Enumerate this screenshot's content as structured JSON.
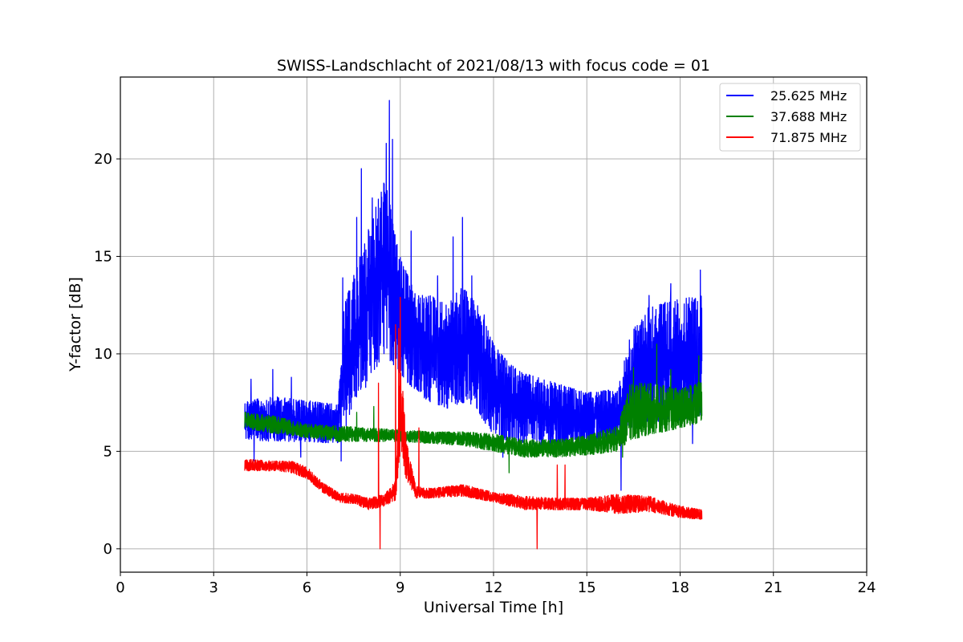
{
  "chart_data": {
    "type": "line",
    "title": "SWISS-Landschlacht of 2021/08/13 with focus code = 01",
    "xlabel": "Universal Time [h]",
    "ylabel": "Y-factor [dB]",
    "xlim": [
      0,
      24
    ],
    "ylim": [
      -1.2,
      24.2
    ],
    "xticks": [
      0,
      3,
      6,
      9,
      12,
      15,
      18,
      21,
      24
    ],
    "xtick_labels": [
      "0",
      "3",
      "6",
      "9",
      "12",
      "15",
      "18",
      "21",
      "24"
    ],
    "yticks": [
      0,
      5,
      10,
      15,
      20
    ],
    "ytick_labels": [
      "0",
      "5",
      "10",
      "15",
      "20"
    ],
    "grid": true,
    "legend_position": "top-right",
    "series": [
      {
        "name": "25.625 MHz",
        "color": "#0000ff",
        "band": {
          "x": [
            4.0,
            5.0,
            6.0,
            7.0,
            7.2,
            7.5,
            8.0,
            8.5,
            9.0,
            9.5,
            10.0,
            10.5,
            11.0,
            11.5,
            12.0,
            12.5,
            13.0,
            14.0,
            15.0,
            16.0,
            16.4,
            17.0,
            18.0,
            18.7
          ],
          "low": [
            5.6,
            5.5,
            5.5,
            5.4,
            6.0,
            7.5,
            8.5,
            10.0,
            9.0,
            8.0,
            7.5,
            7.2,
            7.5,
            7.0,
            5.8,
            5.5,
            5.3,
            5.2,
            5.2,
            5.6,
            6.2,
            6.5,
            6.6,
            6.8
          ],
          "high": [
            7.6,
            7.8,
            7.6,
            7.4,
            12.5,
            14.0,
            16.5,
            19.0,
            15.0,
            13.0,
            13.0,
            12.5,
            13.5,
            12.5,
            10.5,
            9.5,
            9.0,
            8.5,
            8.0,
            8.2,
            11.0,
            12.5,
            12.8,
            13.0
          ]
        },
        "peaks": [
          {
            "x": 4.2,
            "y": 8.7
          },
          {
            "x": 4.9,
            "y": 9.2
          },
          {
            "x": 5.5,
            "y": 8.8
          },
          {
            "x": 7.15,
            "y": 13.9
          },
          {
            "x": 7.6,
            "y": 17.0
          },
          {
            "x": 7.75,
            "y": 19.5
          },
          {
            "x": 8.1,
            "y": 18.0
          },
          {
            "x": 8.3,
            "y": 16.6
          },
          {
            "x": 8.55,
            "y": 20.8
          },
          {
            "x": 8.65,
            "y": 23.0
          },
          {
            "x": 8.75,
            "y": 21.0
          },
          {
            "x": 9.2,
            "y": 14.0
          },
          {
            "x": 9.35,
            "y": 16.3
          },
          {
            "x": 10.2,
            "y": 14.0
          },
          {
            "x": 10.7,
            "y": 16.0
          },
          {
            "x": 11.0,
            "y": 17.0
          },
          {
            "x": 11.3,
            "y": 14.0
          },
          {
            "x": 11.7,
            "y": 12.0
          },
          {
            "x": 17.0,
            "y": 13.0
          },
          {
            "x": 17.7,
            "y": 13.6
          },
          {
            "x": 18.4,
            "y": 13.1
          },
          {
            "x": 18.65,
            "y": 14.3
          }
        ],
        "dips": [
          {
            "x": 4.3,
            "y": 4.5
          },
          {
            "x": 5.8,
            "y": 4.7
          },
          {
            "x": 7.1,
            "y": 4.5
          },
          {
            "x": 12.3,
            "y": 4.7
          },
          {
            "x": 16.1,
            "y": 3.0
          },
          {
            "x": 18.4,
            "y": 5.4
          }
        ]
      },
      {
        "name": "37.688 MHz",
        "color": "#008000",
        "band": {
          "x": [
            4.0,
            5.0,
            6.0,
            7.0,
            8.0,
            9.0,
            10.0,
            11.0,
            12.0,
            13.0,
            14.0,
            15.0,
            16.0,
            16.4,
            17.0,
            18.0,
            18.7
          ],
          "low": [
            6.2,
            5.9,
            5.7,
            5.5,
            5.5,
            5.5,
            5.4,
            5.3,
            5.0,
            4.7,
            4.7,
            4.8,
            5.0,
            5.6,
            5.8,
            6.2,
            6.5
          ],
          "high": [
            7.0,
            6.8,
            6.4,
            6.3,
            6.2,
            6.1,
            6.0,
            6.0,
            5.9,
            5.6,
            5.6,
            5.8,
            6.3,
            8.5,
            8.5,
            8.2,
            8.6
          ]
        },
        "peaks": [
          {
            "x": 7.6,
            "y": 7.0
          },
          {
            "x": 8.15,
            "y": 7.3
          },
          {
            "x": 9.0,
            "y": 7.3
          },
          {
            "x": 16.5,
            "y": 9.3
          },
          {
            "x": 17.25,
            "y": 10.5
          },
          {
            "x": 17.7,
            "y": 9.2
          },
          {
            "x": 18.6,
            "y": 9.9
          }
        ],
        "dips": [
          {
            "x": 12.5,
            "y": 3.9
          },
          {
            "x": 16.15,
            "y": 4.7
          }
        ]
      },
      {
        "name": "71.875 MHz",
        "color": "#ff0000",
        "band": {
          "x": [
            4.0,
            5.0,
            5.5,
            6.0,
            6.5,
            7.0,
            7.5,
            8.0,
            8.5,
            8.85,
            9.0,
            9.2,
            9.5,
            10.0,
            11.0,
            12.0,
            13.0,
            14.0,
            15.0,
            16.0,
            17.0,
            18.0,
            18.7
          ],
          "low": [
            4.0,
            4.0,
            3.9,
            3.6,
            2.9,
            2.4,
            2.3,
            2.0,
            2.2,
            2.5,
            5.0,
            3.5,
            2.6,
            2.6,
            2.7,
            2.4,
            2.0,
            2.0,
            2.0,
            1.8,
            1.9,
            1.6,
            1.5
          ],
          "high": [
            4.6,
            4.5,
            4.5,
            4.2,
            3.4,
            2.9,
            2.8,
            2.6,
            2.8,
            3.5,
            10.0,
            5.5,
            3.2,
            3.1,
            3.3,
            2.9,
            2.7,
            2.6,
            2.6,
            2.8,
            2.7,
            2.2,
            2.0
          ]
        },
        "peaks": [
          {
            "x": 8.3,
            "y": 8.5
          },
          {
            "x": 8.85,
            "y": 11.5
          },
          {
            "x": 8.95,
            "y": 11.3
          },
          {
            "x": 9.0,
            "y": 12.9
          },
          {
            "x": 9.6,
            "y": 6.2
          },
          {
            "x": 14.05,
            "y": 4.3
          },
          {
            "x": 14.3,
            "y": 4.3
          }
        ],
        "dips": [
          {
            "x": 8.35,
            "y": 0.0
          },
          {
            "x": 13.4,
            "y": 0.0
          }
        ]
      }
    ]
  }
}
